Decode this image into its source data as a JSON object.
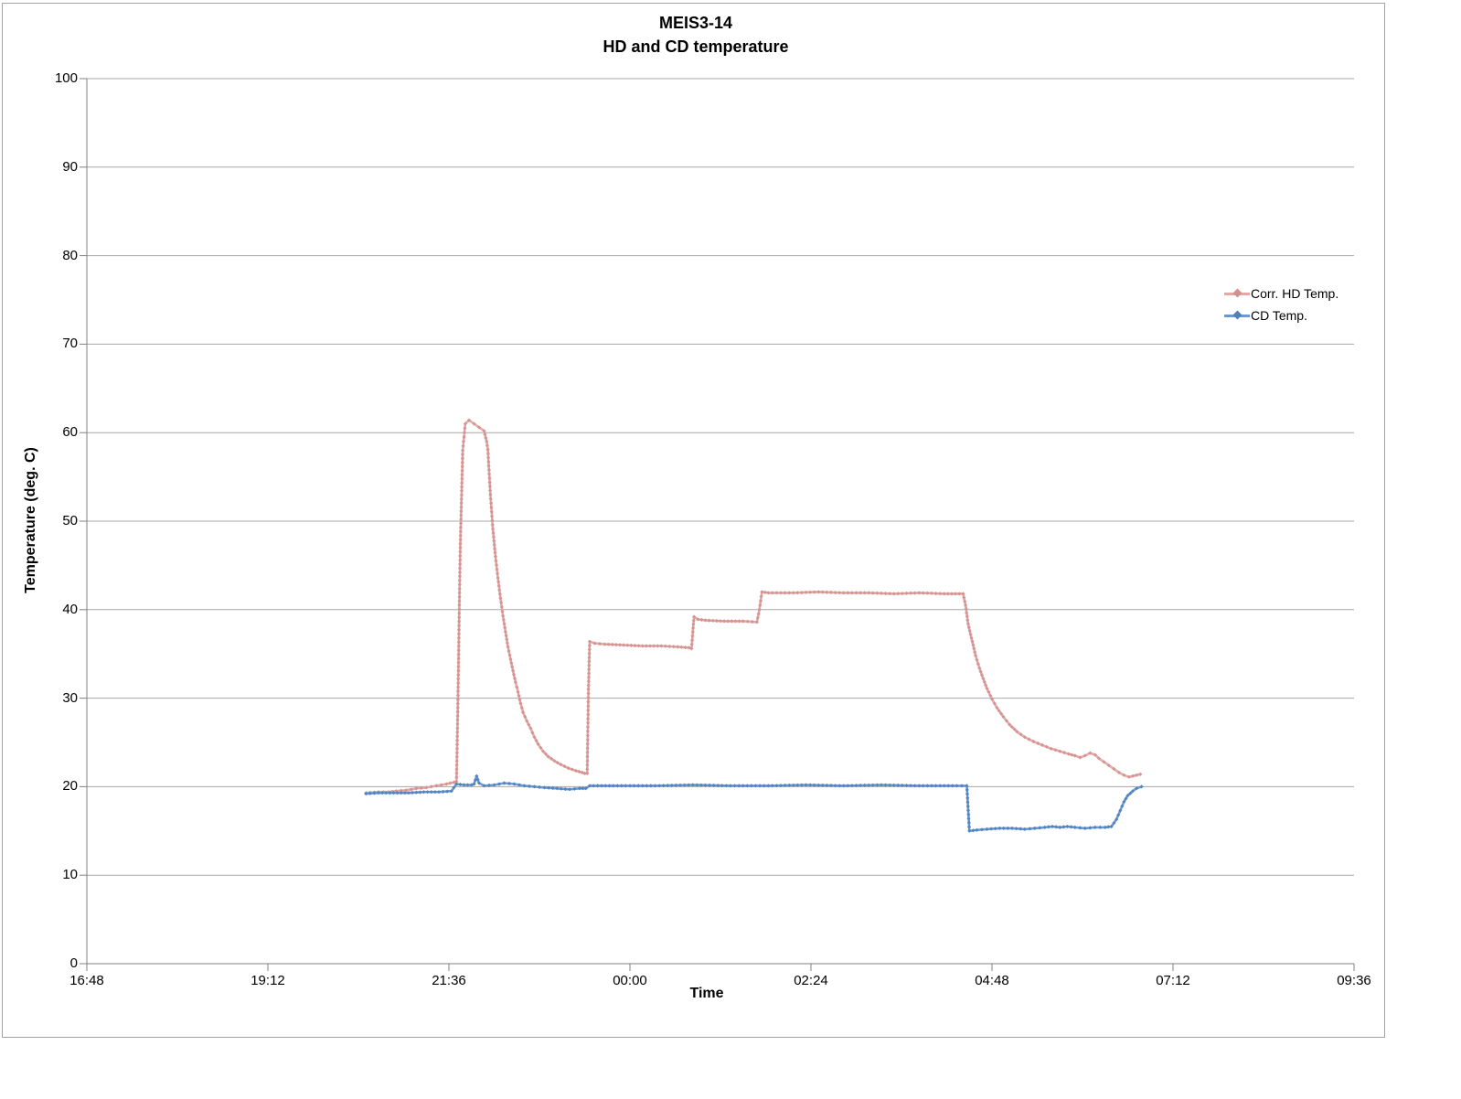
{
  "chart_data": {
    "type": "line",
    "title": "MEIS3-14",
    "subtitle": "HD and CD temperature",
    "xlabel": "Time",
    "ylabel": "Temperature (deg. C)",
    "x_tick_labels": [
      "16:48",
      "19:12",
      "21:36",
      "00:00",
      "02:24",
      "04:48",
      "07:12",
      "09:36"
    ],
    "x_axis_start": "16:48",
    "x_axis_end": "09:36",
    "ylim": [
      0,
      100
    ],
    "y_tick_step": 10,
    "grid": "horizontal",
    "legend_position": "right",
    "colors": {
      "grid": "#a8a8a8",
      "axis": "#808080",
      "hd_line": "#e3a8a6",
      "hd_marker": "#d2908e",
      "cd_line": "#6b97d3",
      "cd_marker": "#4f81bd"
    },
    "series": [
      {
        "name": "Corr. HD Temp.",
        "points": [
          [
            "20:30",
            19.3
          ],
          [
            "20:40",
            19.4
          ],
          [
            "20:48",
            19.4
          ],
          [
            "20:54",
            19.5
          ],
          [
            "21:02",
            19.6
          ],
          [
            "21:10",
            19.8
          ],
          [
            "21:18",
            19.9
          ],
          [
            "21:26",
            20.1
          ],
          [
            "21:34",
            20.3
          ],
          [
            "21:40",
            20.5
          ],
          [
            "21:42",
            20.6
          ],
          [
            "21:43",
            28.0
          ],
          [
            "21:45",
            47.0
          ],
          [
            "21:47",
            58.0
          ],
          [
            "21:49",
            61.0
          ],
          [
            "21:52",
            61.4
          ],
          [
            "21:56",
            61.0
          ],
          [
            "22:00",
            60.6
          ],
          [
            "22:04",
            60.2
          ],
          [
            "22:06",
            59.0
          ],
          [
            "22:07",
            58.1
          ],
          [
            "22:09",
            53.0
          ],
          [
            "22:11",
            49.1
          ],
          [
            "22:13",
            46.0
          ],
          [
            "22:15",
            43.6
          ],
          [
            "22:17",
            41.3
          ],
          [
            "22:19",
            39.3
          ],
          [
            "22:21",
            37.5
          ],
          [
            "22:23",
            35.8
          ],
          [
            "22:25",
            34.4
          ],
          [
            "22:27",
            33.1
          ],
          [
            "22:29",
            31.8
          ],
          [
            "22:31",
            30.7
          ],
          [
            "22:33",
            29.4
          ],
          [
            "22:35",
            28.4
          ],
          [
            "22:38",
            27.4
          ],
          [
            "22:41",
            26.6
          ],
          [
            "22:44",
            25.6
          ],
          [
            "22:47",
            24.8
          ],
          [
            "22:51",
            24.0
          ],
          [
            "22:55",
            23.4
          ],
          [
            "23:00",
            22.9
          ],
          [
            "23:05",
            22.5
          ],
          [
            "23:11",
            22.1
          ],
          [
            "23:17",
            21.8
          ],
          [
            "23:22",
            21.6
          ],
          [
            "23:24",
            21.5
          ],
          [
            "23:26",
            21.5
          ],
          [
            "23:27",
            31.0
          ],
          [
            "23:28",
            36.4
          ],
          [
            "23:32",
            36.2
          ],
          [
            "23:40",
            36.1
          ],
          [
            "23:55",
            36.0
          ],
          [
            "00:10",
            35.9
          ],
          [
            "00:25",
            35.9
          ],
          [
            "00:38",
            35.8
          ],
          [
            "00:47",
            35.7
          ],
          [
            "00:49",
            35.6
          ],
          [
            "00:50",
            37.5
          ],
          [
            "00:51",
            39.2
          ],
          [
            "00:54",
            38.9
          ],
          [
            "01:00",
            38.8
          ],
          [
            "01:15",
            38.7
          ],
          [
            "01:30",
            38.7
          ],
          [
            "01:41",
            38.6
          ],
          [
            "01:43",
            40.0
          ],
          [
            "01:45",
            42.0
          ],
          [
            "01:50",
            41.9
          ],
          [
            "02:10",
            41.9
          ],
          [
            "02:30",
            42.0
          ],
          [
            "02:50",
            41.9
          ],
          [
            "03:10",
            41.9
          ],
          [
            "03:30",
            41.8
          ],
          [
            "03:50",
            41.9
          ],
          [
            "04:10",
            41.8
          ],
          [
            "04:25",
            41.8
          ],
          [
            "04:27",
            40.5
          ],
          [
            "04:29",
            38.4
          ],
          [
            "04:31",
            37.2
          ],
          [
            "04:33",
            36.0
          ],
          [
            "04:35",
            34.8
          ],
          [
            "04:38",
            33.4
          ],
          [
            "04:41",
            32.2
          ],
          [
            "04:44",
            31.1
          ],
          [
            "04:48",
            29.9
          ],
          [
            "04:52",
            28.9
          ],
          [
            "04:57",
            27.9
          ],
          [
            "05:02",
            27.0
          ],
          [
            "05:08",
            26.2
          ],
          [
            "05:14",
            25.6
          ],
          [
            "05:21",
            25.1
          ],
          [
            "05:28",
            24.7
          ],
          [
            "05:35",
            24.3
          ],
          [
            "05:42",
            24.0
          ],
          [
            "05:49",
            23.7
          ],
          [
            "05:54",
            23.5
          ],
          [
            "05:58",
            23.3
          ],
          [
            "06:02",
            23.5
          ],
          [
            "06:06",
            23.8
          ],
          [
            "06:10",
            23.6
          ],
          [
            "06:13",
            23.2
          ],
          [
            "06:17",
            22.8
          ],
          [
            "06:21",
            22.4
          ],
          [
            "06:25",
            22.0
          ],
          [
            "06:29",
            21.6
          ],
          [
            "06:33",
            21.3
          ],
          [
            "06:37",
            21.1
          ],
          [
            "06:40",
            21.2
          ],
          [
            "06:43",
            21.3
          ],
          [
            "06:46",
            21.4
          ]
        ]
      },
      {
        "name": "CD Temp.",
        "points": [
          [
            "20:30",
            19.2
          ],
          [
            "20:40",
            19.3
          ],
          [
            "20:52",
            19.3
          ],
          [
            "21:04",
            19.3
          ],
          [
            "21:16",
            19.4
          ],
          [
            "21:28",
            19.4
          ],
          [
            "21:38",
            19.5
          ],
          [
            "21:42",
            20.3
          ],
          [
            "21:48",
            20.2
          ],
          [
            "21:54",
            20.2
          ],
          [
            "21:56",
            20.3
          ],
          [
            "21:58",
            21.2
          ],
          [
            "22:00",
            20.4
          ],
          [
            "22:04",
            20.1
          ],
          [
            "22:12",
            20.2
          ],
          [
            "22:20",
            20.4
          ],
          [
            "22:28",
            20.3
          ],
          [
            "22:36",
            20.1
          ],
          [
            "22:44",
            20.0
          ],
          [
            "22:52",
            19.9
          ],
          [
            "23:02",
            19.8
          ],
          [
            "23:12",
            19.7
          ],
          [
            "23:20",
            19.8
          ],
          [
            "23:25",
            19.8
          ],
          [
            "23:28",
            20.1
          ],
          [
            "23:50",
            20.1
          ],
          [
            "00:20",
            20.1
          ],
          [
            "00:50",
            20.2
          ],
          [
            "01:20",
            20.1
          ],
          [
            "01:50",
            20.1
          ],
          [
            "02:20",
            20.2
          ],
          [
            "02:50",
            20.1
          ],
          [
            "03:20",
            20.2
          ],
          [
            "03:50",
            20.1
          ],
          [
            "04:20",
            20.1
          ],
          [
            "04:28",
            20.1
          ],
          [
            "04:30",
            15.0
          ],
          [
            "04:36",
            15.1
          ],
          [
            "04:44",
            15.2
          ],
          [
            "04:54",
            15.3
          ],
          [
            "05:04",
            15.3
          ],
          [
            "05:14",
            15.2
          ],
          [
            "05:22",
            15.3
          ],
          [
            "05:30",
            15.4
          ],
          [
            "05:36",
            15.5
          ],
          [
            "05:42",
            15.4
          ],
          [
            "05:48",
            15.5
          ],
          [
            "05:54",
            15.4
          ],
          [
            "06:02",
            15.3
          ],
          [
            "06:10",
            15.4
          ],
          [
            "06:18",
            15.4
          ],
          [
            "06:23",
            15.5
          ],
          [
            "06:27",
            16.3
          ],
          [
            "06:30",
            17.3
          ],
          [
            "06:33",
            18.3
          ],
          [
            "06:36",
            19.0
          ],
          [
            "06:40",
            19.5
          ],
          [
            "06:43",
            19.8
          ],
          [
            "06:47",
            20.0
          ]
        ]
      }
    ]
  }
}
